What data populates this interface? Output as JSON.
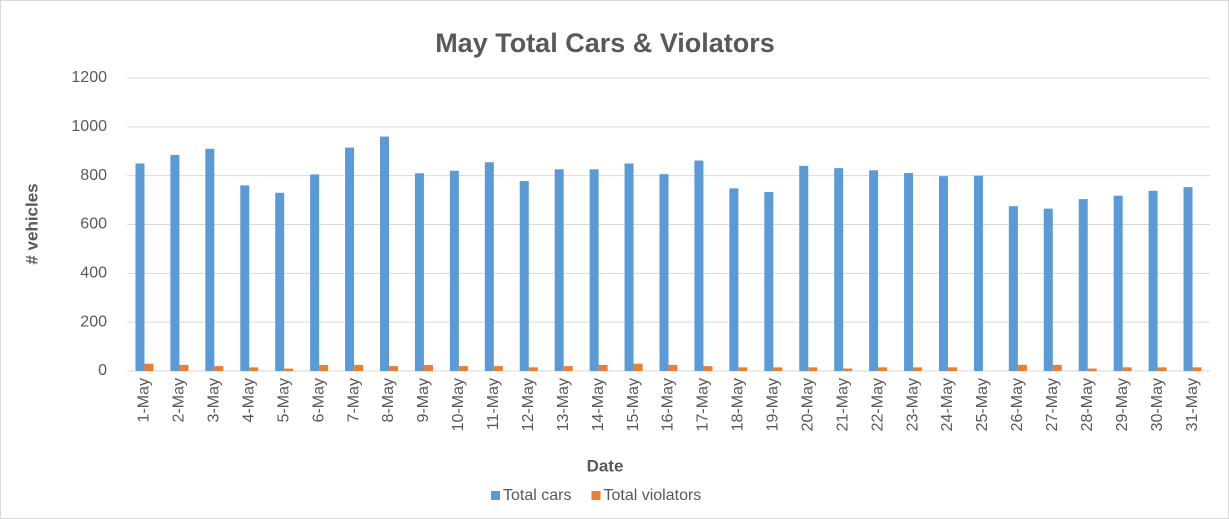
{
  "chart_data": {
    "type": "bar",
    "title": "May Total Cars & Violators",
    "x_label": "Date",
    "y_label": "# vehicles",
    "categories": [
      "1-May",
      "2-May",
      "3-May",
      "4-May",
      "5-May",
      "6-May",
      "7-May",
      "8-May",
      "9-May",
      "10-May",
      "11-May",
      "12-May",
      "13-May",
      "14-May",
      "15-May",
      "16-May",
      "17-May",
      "18-May",
      "19-May",
      "20-May",
      "21-May",
      "22-May",
      "23-May",
      "24-May",
      "25-May",
      "26-May",
      "27-May",
      "28-May",
      "29-May",
      "30-May",
      "31-May"
    ],
    "series": [
      {
        "name": "Total cars",
        "color": "#5b9bd5",
        "values": [
          850,
          885,
          910,
          760,
          730,
          805,
          915,
          960,
          810,
          820,
          855,
          778,
          826,
          826,
          850,
          806,
          862,
          748,
          733,
          840,
          831,
          822,
          811,
          798,
          800,
          675,
          665,
          704,
          718,
          738,
          753
        ]
      },
      {
        "name": "Total violators",
        "color": "#ed7d31",
        "values": [
          30,
          25,
          20,
          15,
          10,
          25,
          25,
          20,
          25,
          20,
          20,
          15,
          20,
          25,
          30,
          25,
          20,
          15,
          15,
          15,
          10,
          15,
          15,
          15,
          0,
          25,
          25,
          10,
          15,
          15,
          15
        ]
      }
    ],
    "ylim": [
      0,
      1200
    ],
    "yticks": [
      0,
      200,
      400,
      600,
      800,
      1000,
      1200
    ],
    "grid": true,
    "legend": "bottom"
  }
}
